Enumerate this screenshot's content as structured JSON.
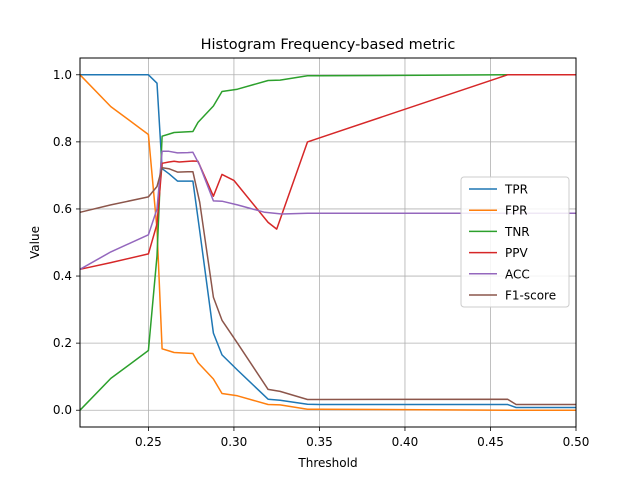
{
  "chart_data": {
    "type": "line",
    "title": "Histogram Frequency-based metric",
    "xlabel": "Threshold",
    "ylabel": "Value",
    "xlim": [
      0.21,
      0.5
    ],
    "ylim": [
      -0.05,
      1.05
    ],
    "xticks": [
      "0.25",
      "0.30",
      "0.35",
      "0.40",
      "0.45",
      "0.50"
    ],
    "xtick_values": [
      0.25,
      0.3,
      0.35,
      0.4,
      0.45,
      0.5
    ],
    "yticks": [
      "0.0",
      "0.2",
      "0.4",
      "0.6",
      "0.8",
      "1.0"
    ],
    "ytick_values": [
      0.0,
      0.2,
      0.4,
      0.6,
      0.8,
      1.0
    ],
    "grid": true,
    "legend_position": "center-right",
    "series": [
      {
        "name": "TPR",
        "color": "#1f77b4",
        "points": [
          [
            0.21,
            1.0
          ],
          [
            0.228,
            1.0
          ],
          [
            0.25,
            1.0
          ],
          [
            0.255,
            0.975
          ],
          [
            0.258,
            0.72
          ],
          [
            0.262,
            0.705
          ],
          [
            0.267,
            0.683
          ],
          [
            0.273,
            0.683
          ],
          [
            0.276,
            0.683
          ],
          [
            0.28,
            0.535
          ],
          [
            0.288,
            0.23
          ],
          [
            0.293,
            0.165
          ],
          [
            0.302,
            0.12
          ],
          [
            0.32,
            0.033
          ],
          [
            0.327,
            0.03
          ],
          [
            0.343,
            0.018
          ],
          [
            0.35,
            0.017
          ],
          [
            0.46,
            0.017
          ],
          [
            0.465,
            0.008
          ],
          [
            0.5,
            0.008
          ]
        ]
      },
      {
        "name": "FPR",
        "color": "#ff7f0e",
        "points": [
          [
            0.21,
            1.0
          ],
          [
            0.228,
            0.905
          ],
          [
            0.25,
            0.822
          ],
          [
            0.255,
            0.54
          ],
          [
            0.258,
            0.183
          ],
          [
            0.262,
            0.177
          ],
          [
            0.265,
            0.172
          ],
          [
            0.276,
            0.169
          ],
          [
            0.279,
            0.142
          ],
          [
            0.288,
            0.093
          ],
          [
            0.293,
            0.05
          ],
          [
            0.302,
            0.043
          ],
          [
            0.32,
            0.017
          ],
          [
            0.327,
            0.016
          ],
          [
            0.343,
            0.003
          ],
          [
            0.35,
            0.003
          ],
          [
            0.46,
            0.0
          ],
          [
            0.5,
            0.0
          ]
        ]
      },
      {
        "name": "TNR",
        "color": "#2ca02c",
        "points": [
          [
            0.21,
            0.0
          ],
          [
            0.228,
            0.095
          ],
          [
            0.25,
            0.178
          ],
          [
            0.255,
            0.46
          ],
          [
            0.258,
            0.817
          ],
          [
            0.262,
            0.823
          ],
          [
            0.265,
            0.828
          ],
          [
            0.276,
            0.831
          ],
          [
            0.279,
            0.858
          ],
          [
            0.288,
            0.907
          ],
          [
            0.293,
            0.95
          ],
          [
            0.302,
            0.957
          ],
          [
            0.32,
            0.983
          ],
          [
            0.327,
            0.984
          ],
          [
            0.343,
            0.997
          ],
          [
            0.35,
            0.997
          ],
          [
            0.46,
            1.0
          ],
          [
            0.5,
            1.0
          ]
        ]
      },
      {
        "name": "PPV",
        "color": "#d62728",
        "points": [
          [
            0.21,
            0.42
          ],
          [
            0.228,
            0.44
          ],
          [
            0.25,
            0.466
          ],
          [
            0.255,
            0.555
          ],
          [
            0.258,
            0.736
          ],
          [
            0.262,
            0.74
          ],
          [
            0.265,
            0.742
          ],
          [
            0.268,
            0.74
          ],
          [
            0.276,
            0.743
          ],
          [
            0.279,
            0.742
          ],
          [
            0.288,
            0.638
          ],
          [
            0.293,
            0.703
          ],
          [
            0.3,
            0.685
          ],
          [
            0.32,
            0.56
          ],
          [
            0.325,
            0.54
          ],
          [
            0.343,
            0.8
          ],
          [
            0.46,
            1.0
          ],
          [
            0.5,
            1.0
          ]
        ]
      },
      {
        "name": "ACC",
        "color": "#9467bd",
        "points": [
          [
            0.21,
            0.42
          ],
          [
            0.228,
            0.472
          ],
          [
            0.25,
            0.523
          ],
          [
            0.255,
            0.6
          ],
          [
            0.258,
            0.772
          ],
          [
            0.262,
            0.772
          ],
          [
            0.267,
            0.767
          ],
          [
            0.273,
            0.768
          ],
          [
            0.276,
            0.769
          ],
          [
            0.28,
            0.73
          ],
          [
            0.288,
            0.624
          ],
          [
            0.293,
            0.623
          ],
          [
            0.302,
            0.612
          ],
          [
            0.318,
            0.59
          ],
          [
            0.328,
            0.585
          ],
          [
            0.343,
            0.587
          ],
          [
            0.5,
            0.587
          ]
        ]
      },
      {
        "name": "F1-score",
        "color": "#8c564b",
        "points": [
          [
            0.21,
            0.59
          ],
          [
            0.228,
            0.612
          ],
          [
            0.25,
            0.636
          ],
          [
            0.255,
            0.667
          ],
          [
            0.258,
            0.723
          ],
          [
            0.262,
            0.72
          ],
          [
            0.267,
            0.71
          ],
          [
            0.273,
            0.711
          ],
          [
            0.276,
            0.711
          ],
          [
            0.28,
            0.62
          ],
          [
            0.288,
            0.337
          ],
          [
            0.293,
            0.268
          ],
          [
            0.302,
            0.2
          ],
          [
            0.32,
            0.062
          ],
          [
            0.327,
            0.056
          ],
          [
            0.343,
            0.032
          ],
          [
            0.35,
            0.032
          ],
          [
            0.46,
            0.033
          ],
          [
            0.465,
            0.017
          ],
          [
            0.5,
            0.017
          ]
        ]
      }
    ]
  }
}
